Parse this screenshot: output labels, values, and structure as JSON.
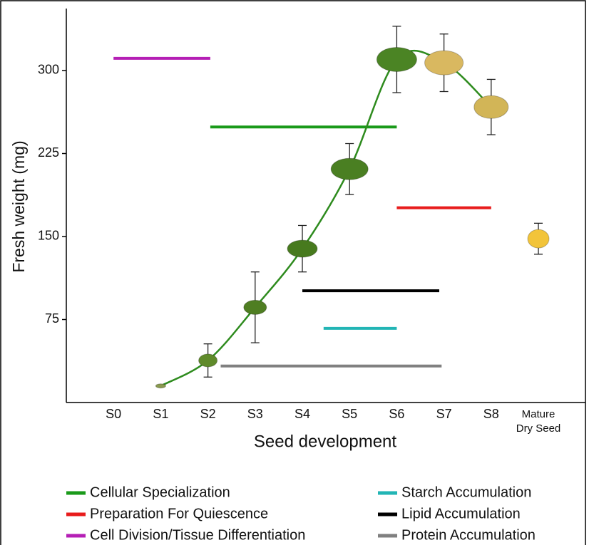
{
  "chart_data": {
    "type": "line",
    "ylabel": "Fresh weight (mg)",
    "xlabel": "Seed development",
    "categories": [
      "S0",
      "S1",
      "S2",
      "S3",
      "S4",
      "S5",
      "S6",
      "S7",
      "S8",
      "Mature\nDry Seed"
    ],
    "values": [
      null,
      15,
      38,
      86,
      139,
      211,
      310,
      307,
      267,
      148
    ],
    "errors": [
      null,
      null,
      15,
      32,
      21,
      23,
      30,
      26,
      25,
      14
    ],
    "line_color": "#2e8b1e",
    "seed_colors": [
      null,
      "#8a9a50",
      "#5f8a2a",
      "#4f7e22",
      "#477a1e",
      "#4a7f22",
      "#4b8424",
      "#d9b860",
      "#d2b557",
      "#f2c43a"
    ],
    "ylim": [
      0,
      356
    ],
    "yticks": [
      75,
      150,
      225,
      300
    ],
    "phases": [
      {
        "name": "Cellular Specialization",
        "color": "#1a9a1a",
        "start": 2.05,
        "end": 6,
        "y": 249
      },
      {
        "name": "Preparation For Quiescence",
        "color": "#e81c1c",
        "start": 6,
        "end": 8,
        "y": 176
      },
      {
        "name": "Cell Division/Tissue Differentiation",
        "color": "#b51fb5",
        "start": 0,
        "end": 2.05,
        "y": 311
      },
      {
        "name": "Starch Accumulation",
        "color": "#22b5b5",
        "start": 4.45,
        "end": 6,
        "y": 67
      },
      {
        "name": "Lipid Accumulation",
        "color": "#000000",
        "start": 4,
        "end": 6.9,
        "y": 101
      },
      {
        "name": "Protein Accumulation",
        "color": "#808080",
        "start": 2.27,
        "end": 6.95,
        "y": 33
      }
    ]
  }
}
